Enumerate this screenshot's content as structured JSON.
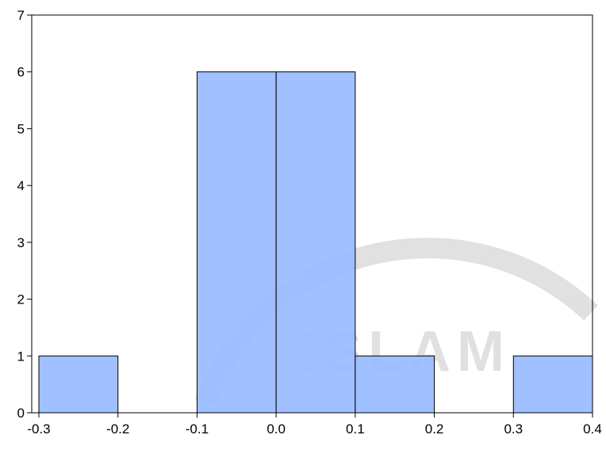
{
  "chart_data": {
    "type": "bar",
    "bins": [
      {
        "x0": -0.3,
        "x1": -0.2,
        "count": 1
      },
      {
        "x0": -0.2,
        "x1": -0.1,
        "count": 0
      },
      {
        "x0": -0.1,
        "x1": 0.0,
        "count": 6
      },
      {
        "x0": 0.0,
        "x1": 0.1,
        "count": 6
      },
      {
        "x0": 0.1,
        "x1": 0.2,
        "count": 1
      },
      {
        "x0": 0.2,
        "x1": 0.3,
        "count": 0
      },
      {
        "x0": 0.3,
        "x1": 0.4,
        "count": 1
      }
    ],
    "xlim": [
      -0.3,
      0.4
    ],
    "ylim": [
      0,
      7
    ],
    "x_ticks": [
      -0.3,
      -0.2,
      -0.1,
      0.0,
      0.1,
      0.2,
      0.3,
      0.4
    ],
    "x_tick_labels": [
      "-0.3",
      "-0.2",
      "-0.1",
      "0.0",
      "0.1",
      "0.2",
      "0.3",
      "0.4"
    ],
    "y_ticks": [
      0,
      1,
      2,
      3,
      4,
      5,
      6,
      7
    ],
    "y_tick_labels": [
      "0",
      "1",
      "2",
      "3",
      "4",
      "5",
      "6",
      "7"
    ],
    "title": "",
    "xlabel": "",
    "ylabel": "",
    "grid": false,
    "colors": {
      "bar_fill": "#99bbff",
      "bar_stroke": "#000000",
      "axis": "#000000",
      "watermark": "#b0b0b0"
    }
  },
  "watermark": {
    "text": "ISLAM"
  }
}
